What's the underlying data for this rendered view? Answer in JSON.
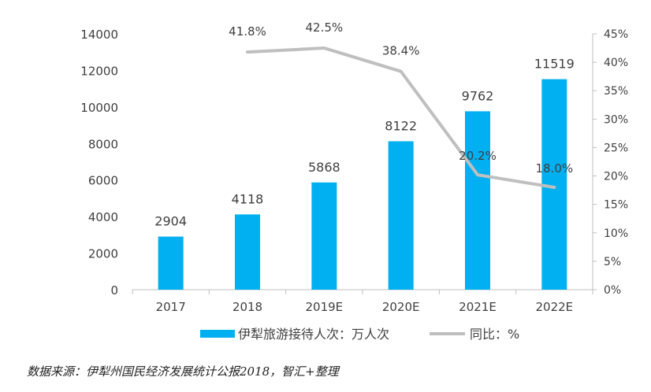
{
  "colors": {
    "bar": "#00B0F0",
    "line": "#BFBFBF",
    "axis": "#BFBFBF",
    "text": "#404040"
  },
  "chart_data": {
    "type": "bar",
    "categories": [
      "2017",
      "2018",
      "2019E",
      "2020E",
      "2021E",
      "2022E"
    ],
    "series": [
      {
        "name": "伊犁旅游接待人次：万人次",
        "type": "bar",
        "axis": "left",
        "values": [
          2904,
          4118,
          5868,
          8122,
          9762,
          11519
        ],
        "labels": [
          "2904",
          "4118",
          "5868",
          "8122",
          "9762",
          "11519"
        ]
      },
      {
        "name": "同比：%",
        "type": "line",
        "axis": "right",
        "values": [
          null,
          41.8,
          42.5,
          38.4,
          20.2,
          18.0
        ],
        "labels": [
          "",
          "41.8%",
          "42.5%",
          "38.4%",
          "20.2%",
          "18.0%"
        ]
      }
    ],
    "y_left": {
      "min": 0,
      "max": 14000,
      "ticks": [
        "0",
        "2000",
        "4000",
        "6000",
        "8000",
        "10000",
        "12000",
        "14000"
      ]
    },
    "y_right": {
      "min": 0,
      "max": 45,
      "ticks": [
        "0%",
        "5%",
        "10%",
        "15%",
        "20%",
        "25%",
        "30%",
        "35%",
        "40%",
        "45%"
      ]
    },
    "grid": false,
    "legend_position": "bottom"
  },
  "source": "数据来源：伊犁州国民经济发展统计公报2018，智汇+整理"
}
